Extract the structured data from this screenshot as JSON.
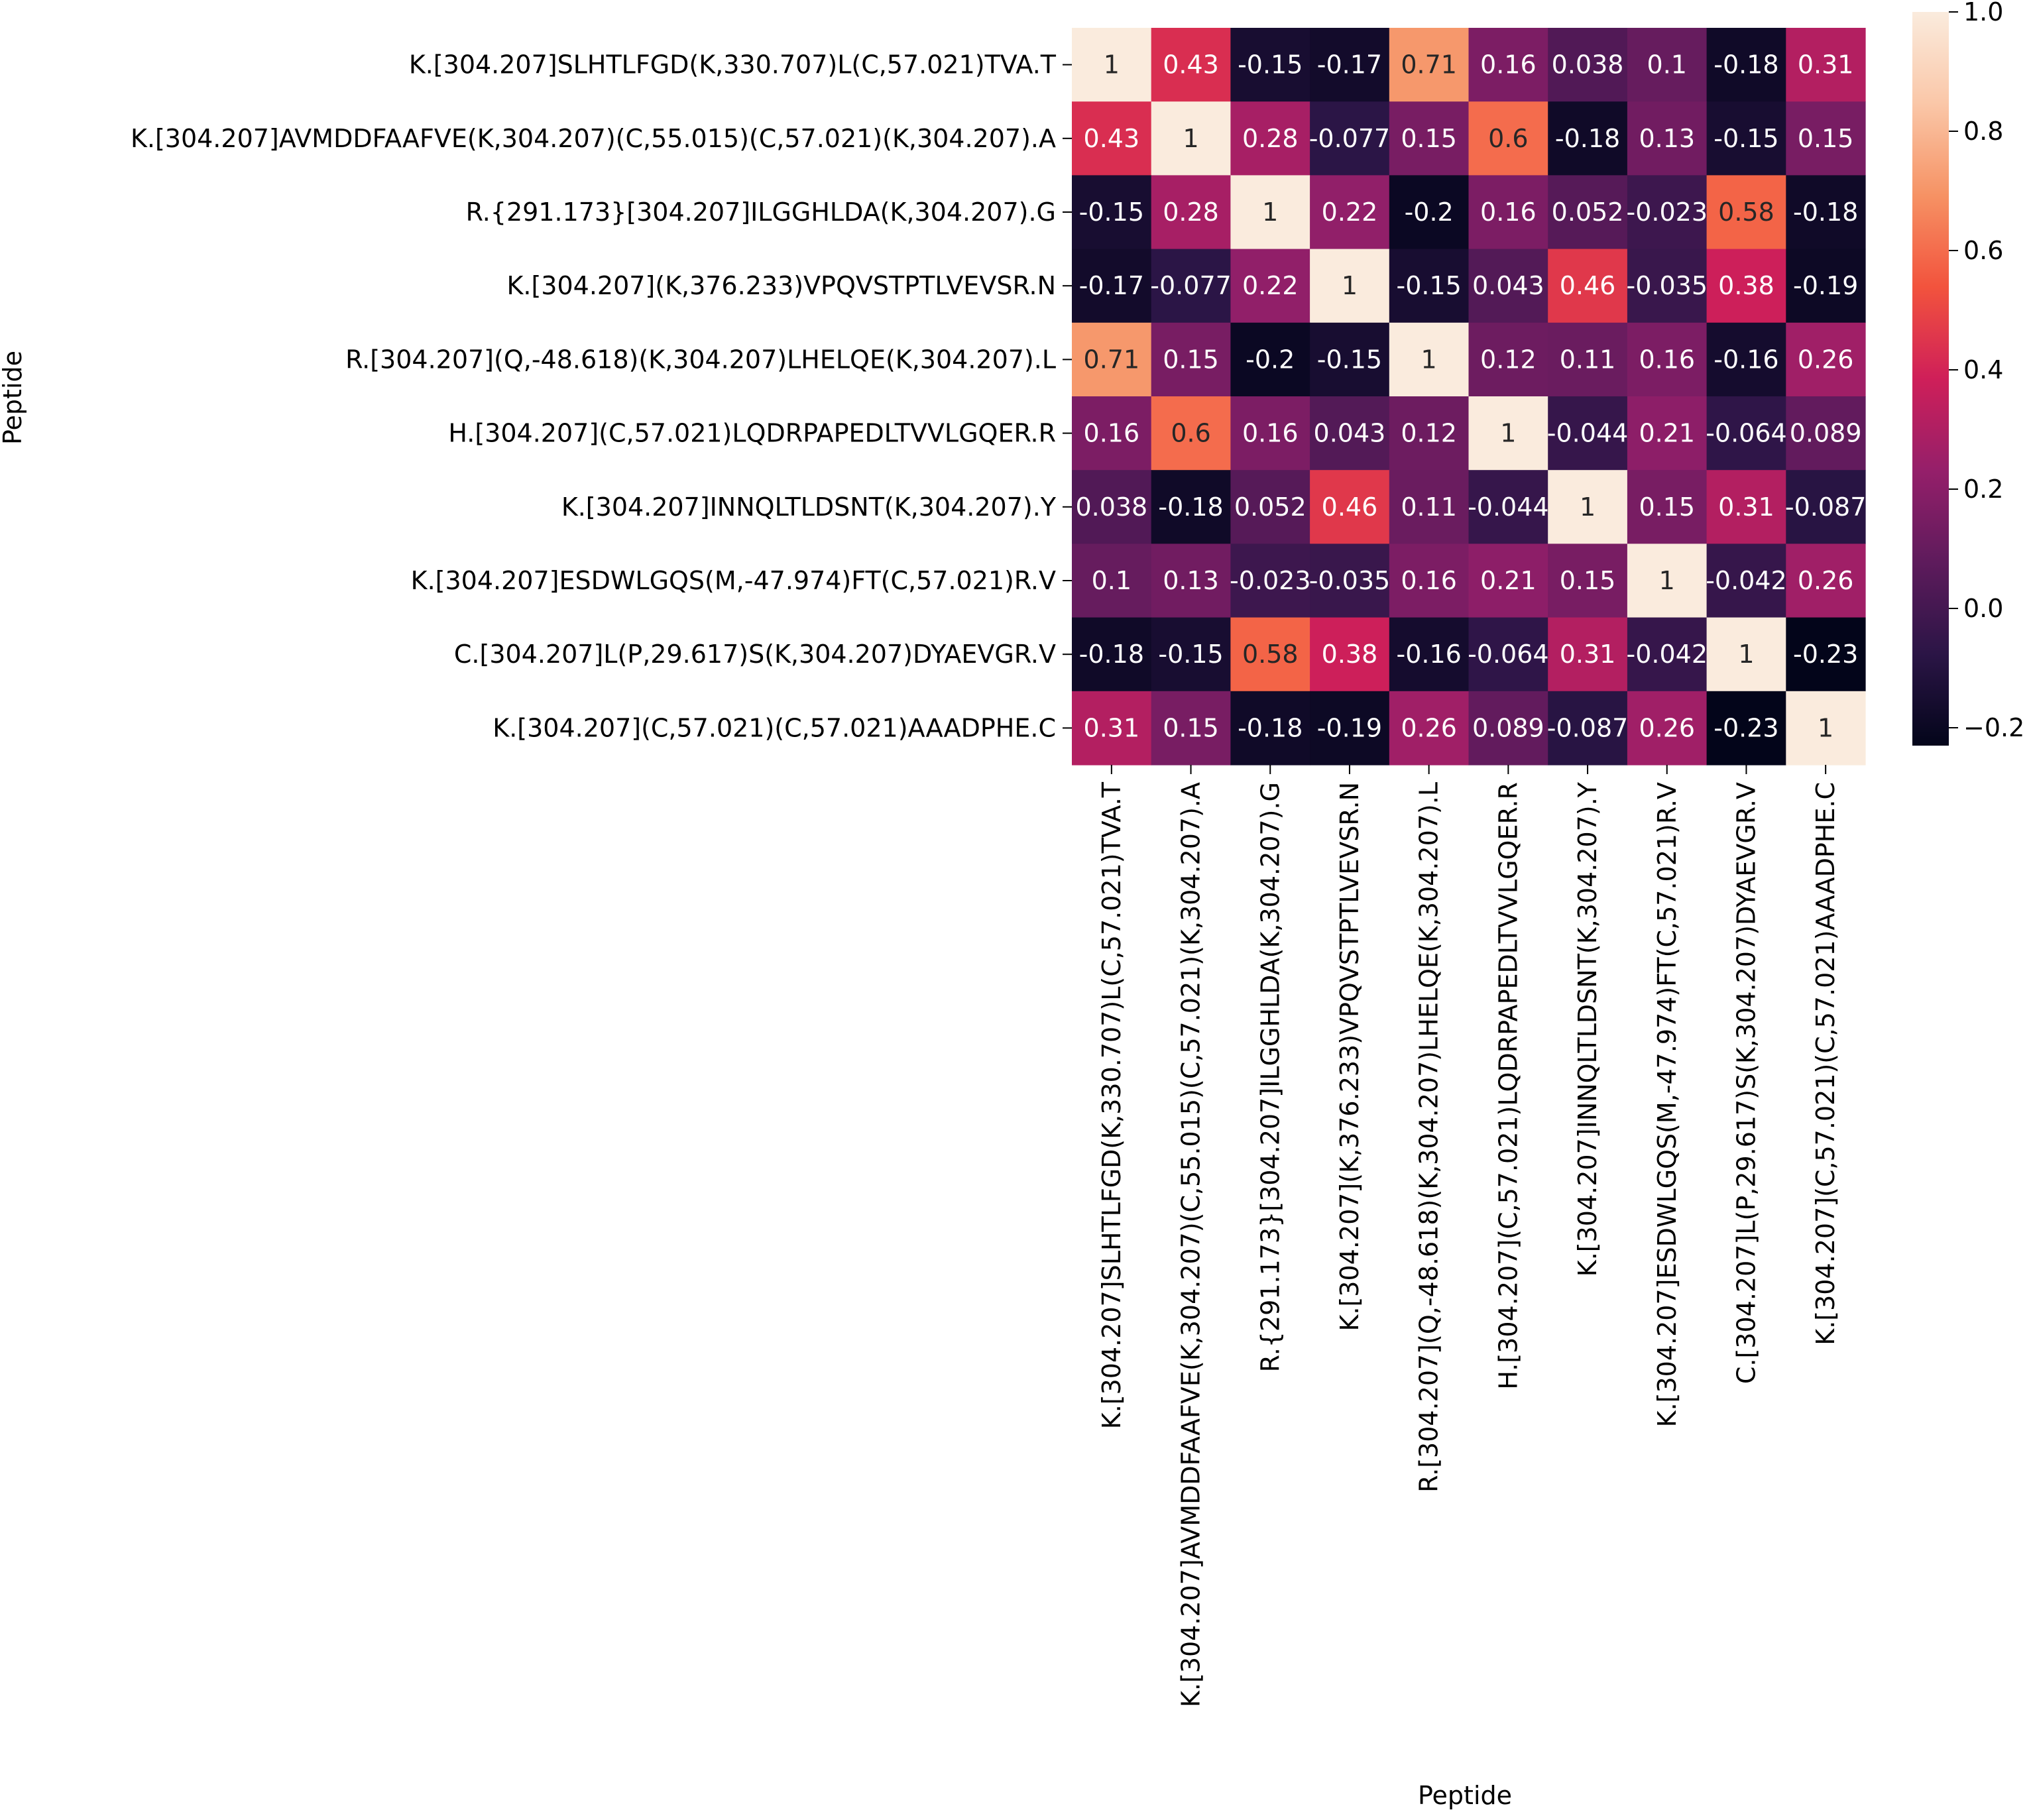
{
  "chart_data": {
    "type": "heatmap",
    "title": "",
    "xlabel": "Peptide",
    "ylabel": "Peptide",
    "rows": [
      "K.[304.207]SLHTLFGD(K,330.707)L(C,57.021)TVA.T",
      "K.[304.207]AVMDDFAAFVE(K,304.207)(C,55.015)(C,57.021)(K,304.207).A",
      "R.{291.173}[304.207]ILGGHLDA(K,304.207).G",
      "K.[304.207](K,376.233)VPQVSTPTLVEVSR.N",
      "R.[304.207](Q,-48.618)(K,304.207)LHELQE(K,304.207).L",
      "H.[304.207](C,57.021)LQDRPAPEDLTVVLGQER.R",
      "K.[304.207]INNQLTLDSNT(K,304.207).Y",
      "K.[304.207]ESDWLGQS(M,-47.974)FT(C,57.021)R.V",
      "C.[304.207]L(P,29.617)S(K,304.207)DYAEVGR.V",
      "K.[304.207](C,57.021)(C,57.021)AAADPHE.C"
    ],
    "columns": [
      "K.[304.207]SLHTLFGD(K,330.707)L(C,57.021)TVA.T",
      "K.[304.207]AVMDDFAAFVE(K,304.207)(C,55.015)(C,57.021)(K,304.207).A",
      "R.{291.173}[304.207]ILGGHLDA(K,304.207).G",
      "K.[304.207](K,376.233)VPQVSTPTLVEVSR.N",
      "R.[304.207](Q,-48.618)(K,304.207)LHELQE(K,304.207).L",
      "H.[304.207](C,57.021)LQDRPAPEDLTVVLGQER.R",
      "K.[304.207]INNQLTLDSNT(K,304.207).Y",
      "K.[304.207]ESDWLGQS(M,-47.974)FT(C,57.021)R.V",
      "C.[304.207]L(P,29.617)S(K,304.207)DYAEVGR.V",
      "K.[304.207](C,57.021)(C,57.021)AAADPHE.C"
    ],
    "values": [
      [
        1,
        0.43,
        -0.15,
        -0.17,
        0.71,
        0.16,
        0.038,
        0.1,
        -0.18,
        0.31
      ],
      [
        0.43,
        1,
        0.28,
        -0.077,
        0.15,
        0.6,
        -0.18,
        0.13,
        -0.15,
        0.15
      ],
      [
        -0.15,
        0.28,
        1,
        0.22,
        -0.2,
        0.16,
        0.052,
        -0.023,
        0.58,
        -0.18
      ],
      [
        -0.17,
        -0.077,
        0.22,
        1,
        -0.15,
        0.043,
        0.46,
        -0.035,
        0.38,
        -0.19
      ],
      [
        0.71,
        0.15,
        -0.2,
        -0.15,
        1,
        0.12,
        0.11,
        0.16,
        -0.16,
        0.26
      ],
      [
        0.16,
        0.6,
        0.16,
        0.043,
        0.12,
        1,
        -0.044,
        0.21,
        -0.064,
        0.089
      ],
      [
        0.038,
        -0.18,
        0.052,
        0.46,
        0.11,
        -0.044,
        1,
        0.15,
        0.31,
        -0.087
      ],
      [
        0.1,
        0.13,
        -0.023,
        -0.035,
        0.16,
        0.21,
        0.15,
        1,
        -0.042,
        0.26
      ],
      [
        -0.18,
        -0.15,
        0.58,
        0.38,
        -0.16,
        -0.064,
        0.31,
        -0.042,
        1,
        -0.23
      ],
      [
        0.31,
        0.15,
        -0.18,
        -0.19,
        0.26,
        0.089,
        -0.087,
        0.26,
        -0.23,
        1
      ]
    ],
    "labels": [
      [
        "1",
        "0.43",
        "-0.15",
        "-0.17",
        "0.71",
        "0.16",
        "0.038",
        "0.1",
        "-0.18",
        "0.31"
      ],
      [
        "0.43",
        "1",
        "0.28",
        "-0.077",
        "0.15",
        "0.6",
        "-0.18",
        "0.13",
        "-0.15",
        "0.15"
      ],
      [
        "-0.15",
        "0.28",
        "1",
        "0.22",
        "-0.2",
        "0.16",
        "0.052",
        "-0.023",
        "0.58",
        "-0.18"
      ],
      [
        "-0.17",
        "-0.077",
        "0.22",
        "1",
        "-0.15",
        "0.043",
        "0.46",
        "-0.035",
        "0.38",
        "-0.19"
      ],
      [
        "0.71",
        "0.15",
        "-0.2",
        "-0.15",
        "1",
        "0.12",
        "0.11",
        "0.16",
        "-0.16",
        "0.26"
      ],
      [
        "0.16",
        "0.6",
        "0.16",
        "0.043",
        "0.12",
        "1",
        "-0.044",
        "0.21",
        "-0.064",
        "0.089"
      ],
      [
        "0.038",
        "-0.18",
        "0.052",
        "0.46",
        "0.11",
        "-0.044",
        "1",
        "0.15",
        "0.31",
        "-0.087"
      ],
      [
        "0.1",
        "0.13",
        "-0.023",
        "-0.035",
        "0.16",
        "0.21",
        "0.15",
        "1",
        "-0.042",
        "0.26"
      ],
      [
        "-0.18",
        "-0.15",
        "0.58",
        "0.38",
        "-0.16",
        "-0.064",
        "0.31",
        "-0.042",
        "1",
        "-0.23"
      ],
      [
        "0.31",
        "0.15",
        "-0.18",
        "-0.19",
        "0.26",
        "0.089",
        "-0.087",
        "0.26",
        "-0.23",
        "1"
      ]
    ],
    "colorbar": {
      "vmin": -0.23,
      "vmax": 1.0,
      "ticks": [
        1.0,
        0.8,
        0.6,
        0.4,
        0.2,
        0.0,
        -0.2
      ],
      "tick_labels": [
        "1.0",
        "0.8",
        "0.6",
        "0.4",
        "0.2",
        "0.0",
        "−0.2"
      ],
      "colormap": "rocket",
      "stops": [
        "#03051a",
        "#2b1546",
        "#5e1b5c",
        "#951f6a",
        "#cf1f59",
        "#f2533d",
        "#f69264",
        "#fac7a8",
        "#faebdd"
      ]
    },
    "annotation_colors": {
      "on_dark": "#ffffff",
      "on_light": "#262626"
    }
  }
}
